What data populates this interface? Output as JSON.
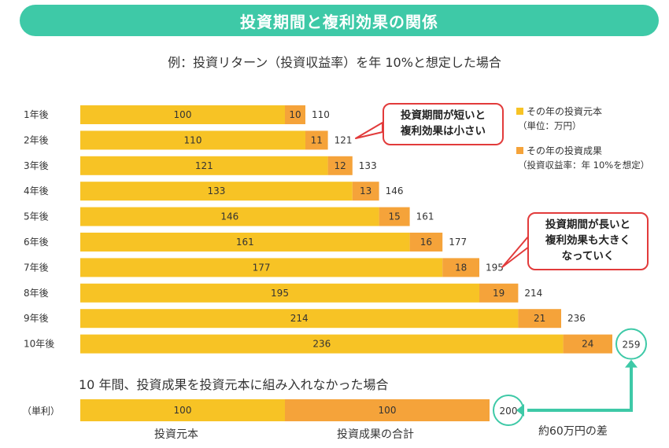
{
  "header": {
    "title": "投資期間と複利効果の関係",
    "subtitle": "例：投資リターン（投資収益率）を年 10%と想定した場合"
  },
  "legend": {
    "principal_label": "その年の投資元本",
    "principal_note": "（単位：万円）",
    "return_label": "その年の投資成果",
    "return_note": "（投資収益率：年 10%を想定）"
  },
  "callouts": {
    "short": [
      "投資期間が短いと",
      "複利効果は小さい"
    ],
    "long": [
      "投資期間が長いと",
      "複利効果も大きく",
      "なっていく"
    ]
  },
  "colors": {
    "principal": "#f7c325",
    "return": "#f5a33a",
    "accent": "#3ec9a7",
    "callout_border": "#e23b3b"
  },
  "chart_data": {
    "type": "bar",
    "orientation": "horizontal",
    "stacked": true,
    "categories": [
      "1年後",
      "2年後",
      "3年後",
      "4年後",
      "5年後",
      "6年後",
      "7年後",
      "8年後",
      "9年後",
      "10年後"
    ],
    "series": [
      {
        "name": "その年の投資元本",
        "values": [
          100,
          110,
          121,
          133,
          146,
          161,
          177,
          195,
          214,
          236
        ]
      },
      {
        "name": "その年の投資成果",
        "values": [
          10,
          11,
          12,
          13,
          15,
          16,
          18,
          19,
          21,
          24
        ]
      }
    ],
    "totals": [
      110,
      121,
      133,
      146,
      161,
      177,
      195,
      214,
      236,
      259
    ]
  },
  "simple_interest": {
    "caption": "10 年間、投資成果を投資元本に組み入れなかった場合",
    "row_label": "（単利）",
    "principal": 100,
    "returns": 100,
    "total": 200,
    "principal_caption": "投資元本",
    "returns_caption": "投資成果の合計",
    "difference_label": "約60万円の差"
  }
}
